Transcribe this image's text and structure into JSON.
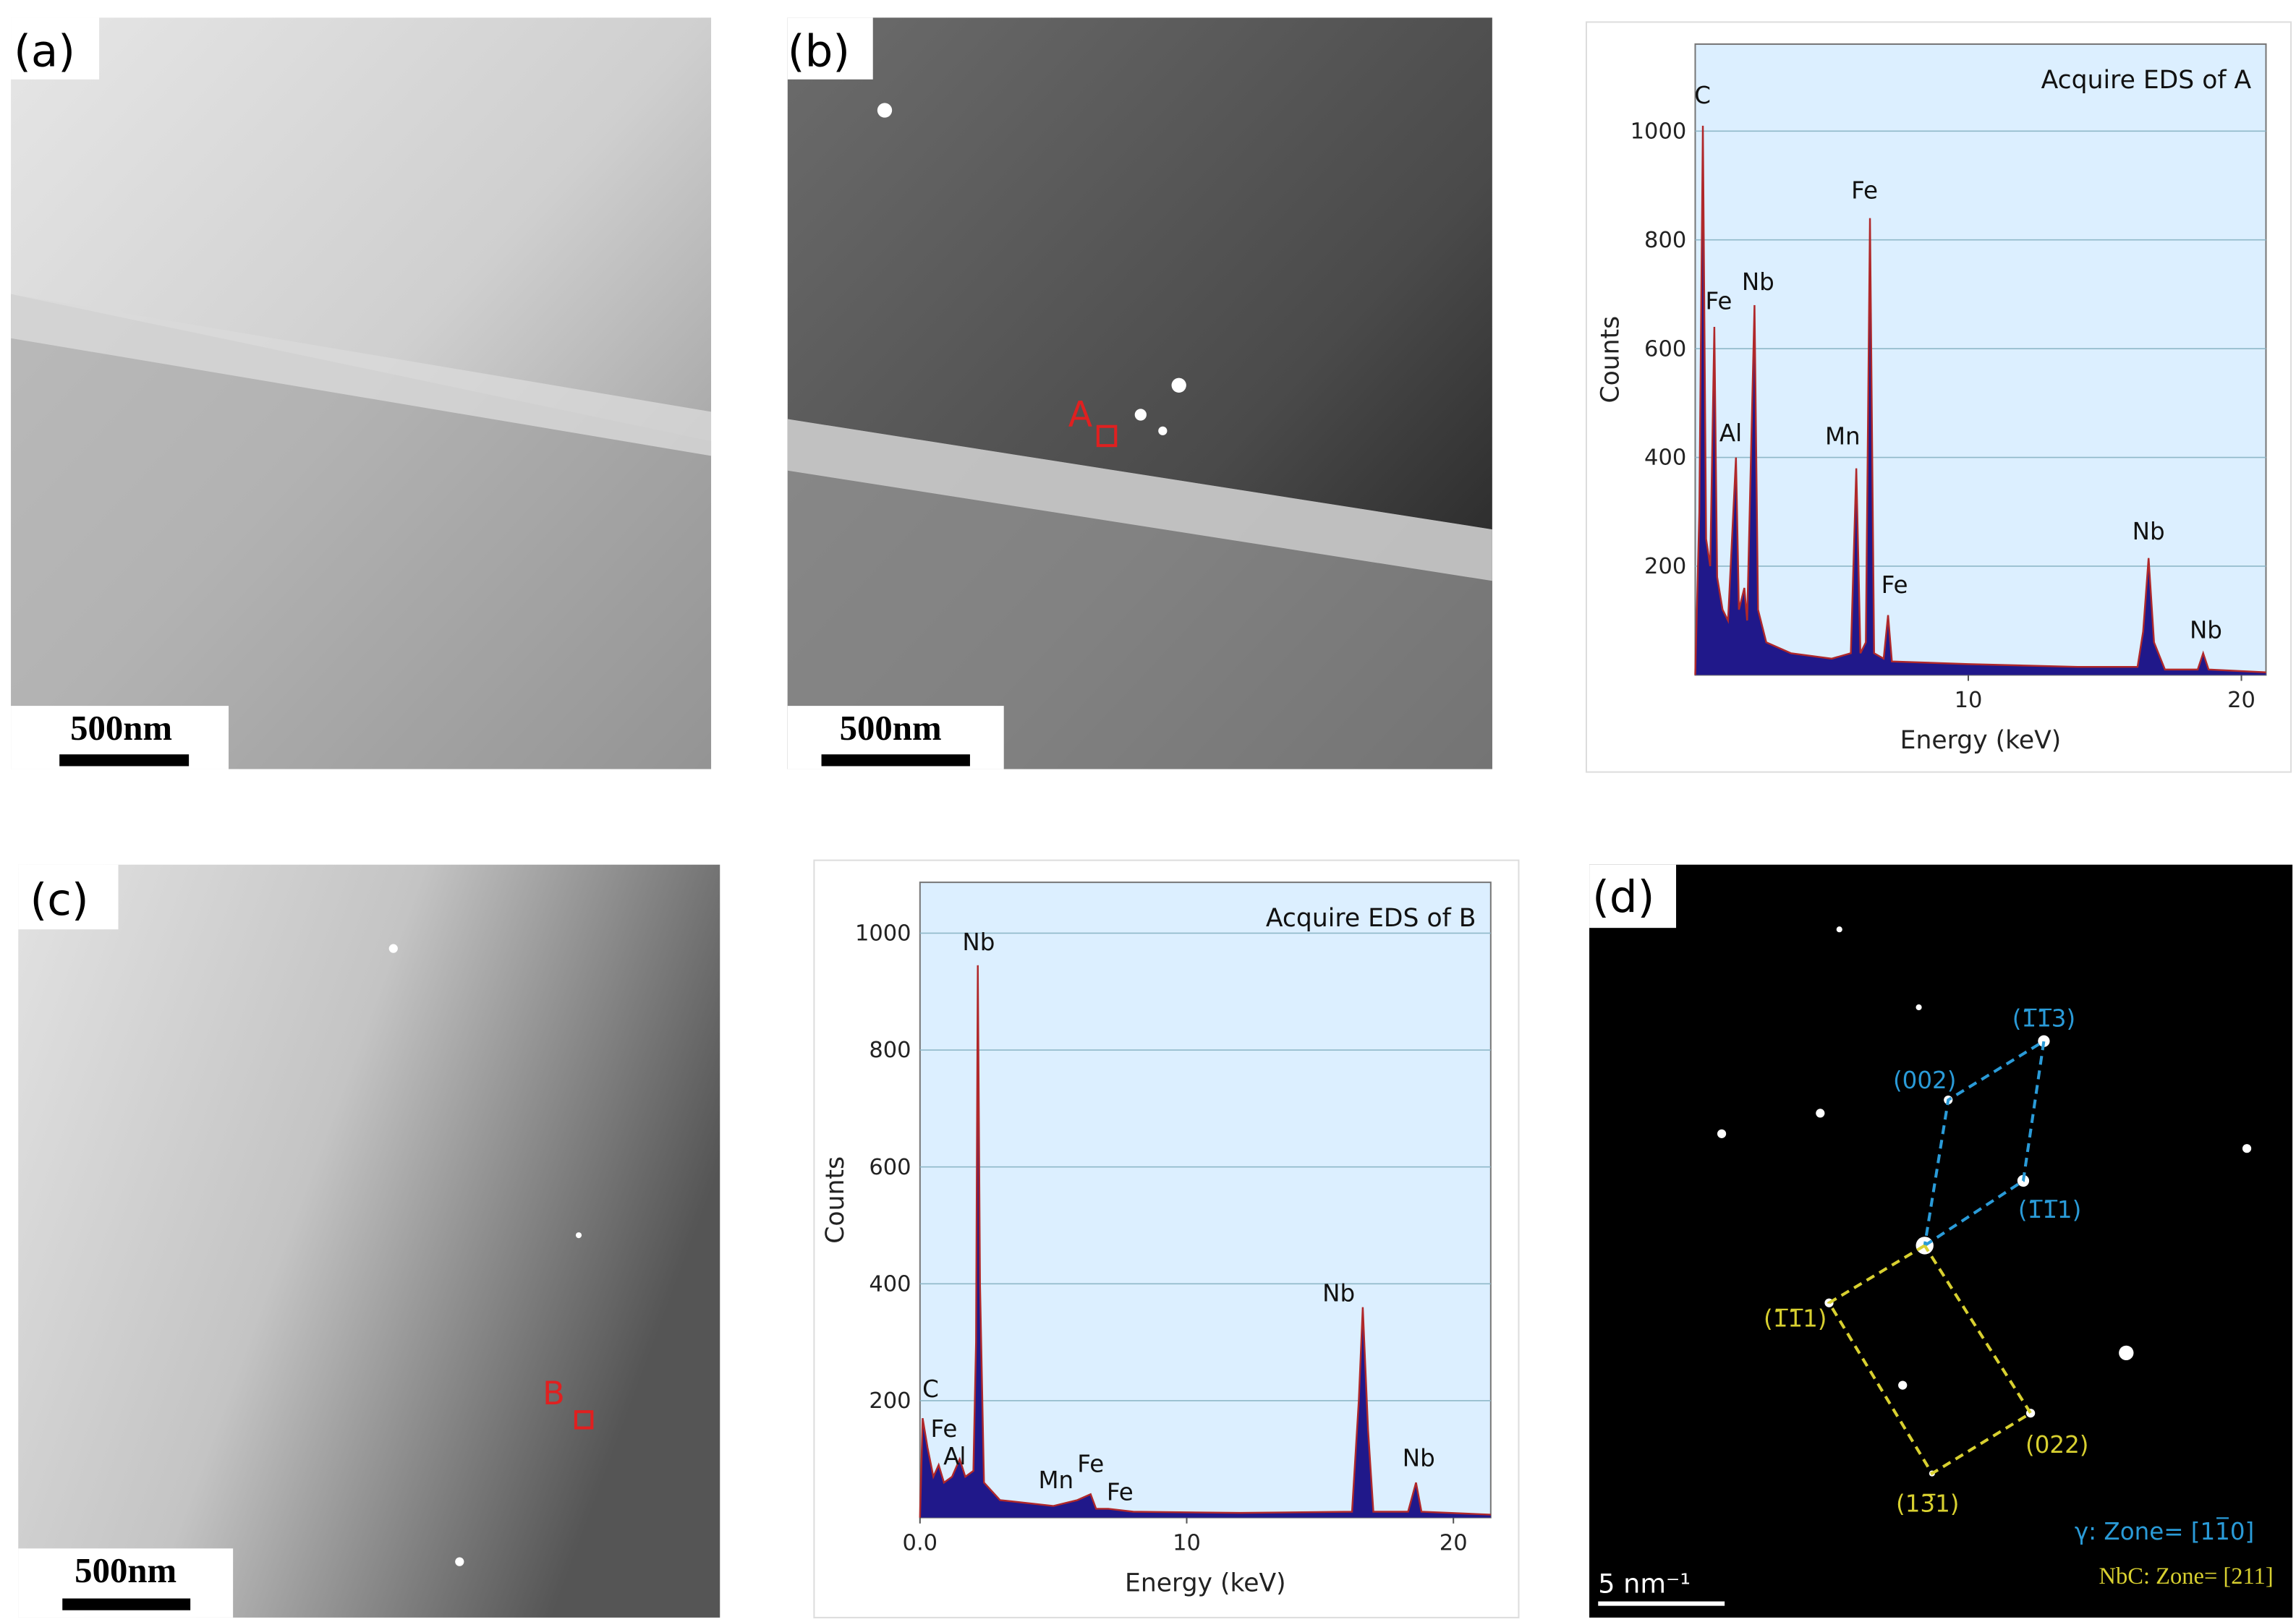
{
  "panels": [
    {
      "label": "(a)",
      "scale_bar": "500nm"
    },
    {
      "label": "(b)",
      "scale_bar": "500nm",
      "marker": "A"
    },
    {
      "label": "(c)",
      "scale_bar": "500nm",
      "marker": "B"
    },
    {
      "label": "(d)",
      "scale_bar": "5 nm⁻¹",
      "spots_gamma": [
        "(1̅1̅3)",
        "(002)",
        "(1̅1̅1)"
      ],
      "spots_nbc": [
        "(1̅1̅1)",
        "(022)",
        "(13̅1)"
      ],
      "zone_gamma": "γ: Zone= [11̅0]",
      "zone_nbc": "NbC: Zone= [211]"
    }
  ],
  "chart_data": [
    {
      "type": "area",
      "title": "Acquire EDS of A",
      "x_label": "Energy (keV)",
      "y_label": "Counts",
      "x": [
        0,
        0.15,
        0.28,
        0.4,
        0.55,
        0.7,
        0.8,
        1.0,
        1.2,
        1.49,
        1.6,
        1.8,
        1.9,
        2.17,
        2.3,
        2.6,
        3.5,
        5.0,
        5.7,
        5.9,
        6.05,
        6.25,
        6.4,
        6.55,
        6.9,
        7.06,
        7.2,
        10,
        14,
        16.2,
        16.4,
        16.6,
        16.8,
        17.2,
        18.4,
        18.6,
        18.8,
        20.9
      ],
      "values": [
        0,
        300,
        1010,
        250,
        200,
        640,
        180,
        120,
        100,
        400,
        120,
        160,
        100,
        680,
        120,
        60,
        40,
        30,
        40,
        380,
        40,
        60,
        840,
        40,
        30,
        110,
        25,
        20,
        15,
        15,
        80,
        215,
        60,
        10,
        10,
        40,
        10,
        5
      ],
      "color": "#20188a",
      "line_color": "#b0282a",
      "background": "#dcefff",
      "grid": true,
      "xlim": [
        0,
        20.9
      ],
      "ylim": [
        0,
        1160
      ],
      "xticks": [
        10,
        20
      ],
      "yticks": [
        200,
        400,
        600,
        800,
        1000
      ],
      "annotations": [
        {
          "text": "C",
          "x": 0.27,
          "y": 1051
        },
        {
          "text": "Fe",
          "x": 0.86,
          "y": 673
        },
        {
          "text": "Nb",
          "x": 2.3,
          "y": 708
        },
        {
          "text": "Al",
          "x": 1.3,
          "y": 430
        },
        {
          "text": "Mn",
          "x": 5.4,
          "y": 424
        },
        {
          "text": "Fe",
          "x": 6.2,
          "y": 876
        },
        {
          "text": "Fe",
          "x": 7.3,
          "y": 151
        },
        {
          "text": "Nb",
          "x": 16.6,
          "y": 249
        },
        {
          "text": "Nb",
          "x": 18.7,
          "y": 68
        }
      ]
    },
    {
      "type": "area",
      "title": "Acquire EDS of B",
      "x_label": "Energy (keV)",
      "y_label": "Counts",
      "x": [
        0,
        0.1,
        0.28,
        0.5,
        0.7,
        0.9,
        1.2,
        1.49,
        1.7,
        2.0,
        2.1,
        2.17,
        2.25,
        2.4,
        3,
        5,
        5.9,
        6.4,
        6.6,
        7.06,
        8,
        12,
        16.2,
        16.45,
        16.6,
        16.8,
        17,
        18.3,
        18.6,
        18.8,
        21.4
      ],
      "values": [
        0,
        170,
        120,
        70,
        90,
        60,
        70,
        100,
        70,
        80,
        300,
        945,
        400,
        60,
        30,
        20,
        30,
        40,
        15,
        15,
        10,
        8,
        10,
        200,
        360,
        150,
        10,
        10,
        60,
        10,
        5
      ],
      "color": "#20188a",
      "line_color": "#b0282a",
      "background": "#dcefff",
      "grid": true,
      "xlim": [
        0,
        21.4
      ],
      "ylim": [
        0,
        1087
      ],
      "xticks": [
        {
          "value": 0,
          "label": "0.0"
        },
        10,
        20
      ],
      "yticks": [
        200,
        400,
        600,
        800,
        1000
      ],
      "annotations": [
        {
          "text": "C",
          "x": 0.4,
          "y": 206
        },
        {
          "text": "Fe",
          "x": 0.9,
          "y": 138
        },
        {
          "text": "Al",
          "x": 1.3,
          "y": 91
        },
        {
          "text": "Nb",
          "x": 2.2,
          "y": 971
        },
        {
          "text": "Mn",
          "x": 5.1,
          "y": 50
        },
        {
          "text": "Fe",
          "x": 6.4,
          "y": 78
        },
        {
          "text": "Fe",
          "x": 7.5,
          "y": 30
        },
        {
          "text": "Nb",
          "x": 15.7,
          "y": 370
        },
        {
          "text": "Nb",
          "x": 18.7,
          "y": 88
        }
      ]
    }
  ]
}
